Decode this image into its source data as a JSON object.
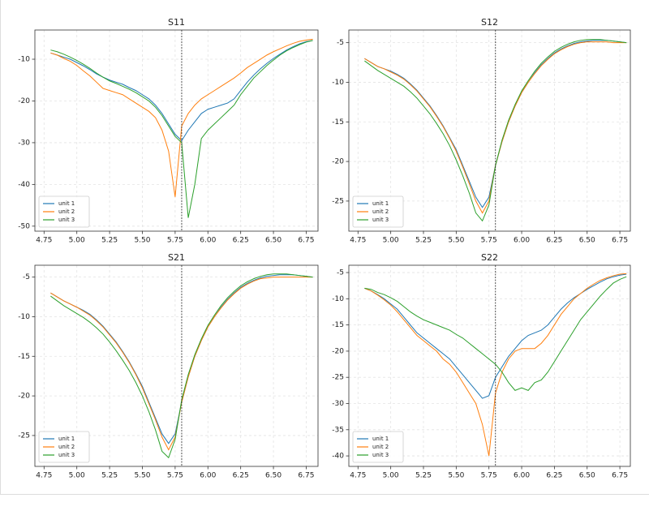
{
  "chart_data": [
    {
      "type": "line",
      "title": "S11",
      "grid": true,
      "legend": "lower left",
      "vline": 5.8,
      "xlim": [
        4.68,
        6.84
      ],
      "ylim": [
        -51.2,
        -3.0
      ],
      "xticks": [
        4.75,
        {
          "value": 5,
          "label": "5.00"
        },
        5.25,
        {
          "value": 5.5,
          "label": "5.50"
        },
        5.75,
        {
          "value": 6,
          "label": "6.00"
        },
        6.25,
        {
          "value": 6.5,
          "label": "6.50"
        },
        6.75
      ],
      "yticks": [
        -10,
        -20,
        -30,
        -40,
        -50
      ],
      "x": [
        4.8,
        4.85,
        4.9,
        4.95,
        5.0,
        5.05,
        5.1,
        5.15,
        5.2,
        5.25,
        5.3,
        5.35,
        5.4,
        5.45,
        5.5,
        5.55,
        5.6,
        5.65,
        5.7,
        5.75,
        5.8,
        5.85,
        5.9,
        5.95,
        6.0,
        6.05,
        6.1,
        6.15,
        6.2,
        6.25,
        6.3,
        6.35,
        6.4,
        6.45,
        6.5,
        6.55,
        6.6,
        6.65,
        6.7,
        6.75,
        6.8
      ],
      "series": [
        {
          "name": "unit 1",
          "color": "#1f77b4",
          "values": [
            -8.5,
            -9,
            -9.5,
            -10,
            -10.8,
            -11.6,
            -12.5,
            -13.5,
            -14.3,
            -15,
            -15.5,
            -16,
            -16.8,
            -17.5,
            -18.5,
            -19.5,
            -21,
            -23,
            -25.5,
            -28,
            -29.5,
            -27,
            -25,
            -23,
            -22,
            -21.5,
            -21,
            -20.5,
            -19.5,
            -17.5,
            -15.5,
            -13.8,
            -12.3,
            -11,
            -9.8,
            -8.8,
            -7.8,
            -7,
            -6.3,
            -5.8,
            -5.5
          ]
        },
        {
          "name": "unit 2",
          "color": "#ff7f0e",
          "values": [
            -8.5,
            -9,
            -9.8,
            -10.5,
            -11.5,
            -12.8,
            -14,
            -15.5,
            -17,
            -17.5,
            -18,
            -18.5,
            -19.5,
            -20.5,
            -21.5,
            -22.5,
            -24,
            -27,
            -32,
            -43,
            -26,
            -23,
            -21,
            -19.5,
            -18.5,
            -17.5,
            -16.5,
            -15.5,
            -14.5,
            -13.3,
            -12,
            -11,
            -10,
            -9,
            -8.2,
            -7.5,
            -6.8,
            -6.2,
            -5.7,
            -5.4,
            -5.2
          ]
        },
        {
          "name": "unit 3",
          "color": "#2ca02c",
          "values": [
            -7.8,
            -8.2,
            -8.8,
            -9.5,
            -10.3,
            -11.2,
            -12.2,
            -13.3,
            -14.3,
            -15.2,
            -15.8,
            -16.5,
            -17.2,
            -18,
            -19,
            -20,
            -21.5,
            -23.5,
            -26,
            -28.5,
            -30,
            -48,
            -40,
            -29,
            -27,
            -25.5,
            -24,
            -22.5,
            -21,
            -18.5,
            -16.5,
            -14.5,
            -13,
            -11.5,
            -10.2,
            -9,
            -8,
            -7.2,
            -6.5,
            -5.9,
            -5.5
          ]
        }
      ]
    },
    {
      "type": "line",
      "title": "S12",
      "grid": true,
      "legend": "lower left",
      "vline": 5.8,
      "xlim": [
        4.68,
        6.83
      ],
      "ylim": [
        -28.8,
        -3.4
      ],
      "xticks": [
        4.75,
        {
          "value": 5,
          "label": "5.00"
        },
        5.25,
        {
          "value": 5.5,
          "label": "5.50"
        },
        5.75,
        {
          "value": 6,
          "label": "6.00"
        },
        6.25,
        {
          "value": 6.5,
          "label": "6.50"
        },
        6.75
      ],
      "yticks": [
        -5,
        -10,
        -15,
        -20,
        -25
      ],
      "x": [
        4.8,
        4.85,
        4.9,
        4.95,
        5.0,
        5.05,
        5.1,
        5.15,
        5.2,
        5.25,
        5.3,
        5.35,
        5.4,
        5.45,
        5.5,
        5.55,
        5.6,
        5.65,
        5.7,
        5.75,
        5.8,
        5.85,
        5.9,
        5.95,
        6.0,
        6.05,
        6.1,
        6.15,
        6.2,
        6.25,
        6.3,
        6.35,
        6.4,
        6.45,
        6.5,
        6.55,
        6.6,
        6.65,
        6.7,
        6.75,
        6.8
      ],
      "series": [
        {
          "name": "unit 1",
          "color": "#1f77b4",
          "values": [
            -7,
            -7.5,
            -8,
            -8.3,
            -8.6,
            -9,
            -9.5,
            -10.2,
            -11,
            -12,
            -13,
            -14.2,
            -15.5,
            -17,
            -18.5,
            -20.5,
            -22.5,
            -24.5,
            -25.8,
            -24.5,
            -20.5,
            -17.5,
            -15,
            -13,
            -11.3,
            -10,
            -8.8,
            -7.8,
            -7,
            -6.3,
            -5.8,
            -5.4,
            -5.1,
            -4.9,
            -4.8,
            -4.7,
            -4.7,
            -4.7,
            -4.8,
            -4.9,
            -5
          ]
        },
        {
          "name": "unit 2",
          "color": "#ff7f0e",
          "values": [
            -7,
            -7.5,
            -8,
            -8.3,
            -8.7,
            -9.1,
            -9.6,
            -10.3,
            -11.1,
            -12.1,
            -13.1,
            -14.3,
            -15.6,
            -17.1,
            -18.7,
            -20.7,
            -22.8,
            -25,
            -26.5,
            -25,
            -20.5,
            -17.5,
            -15,
            -13,
            -11.3,
            -10,
            -8.9,
            -7.9,
            -7.1,
            -6.4,
            -5.9,
            -5.5,
            -5.2,
            -5,
            -4.9,
            -4.9,
            -4.9,
            -4.9,
            -5,
            -5,
            -5
          ]
        },
        {
          "name": "unit 3",
          "color": "#2ca02c",
          "values": [
            -7.3,
            -7.9,
            -8.5,
            -9,
            -9.5,
            -10,
            -10.5,
            -11.2,
            -12,
            -13,
            -14,
            -15.2,
            -16.5,
            -18,
            -19.8,
            -21.8,
            -24,
            -26.5,
            -27.5,
            -25.5,
            -20.5,
            -17.3,
            -14.8,
            -12.8,
            -11.1,
            -9.8,
            -8.6,
            -7.6,
            -6.8,
            -6.1,
            -5.6,
            -5.2,
            -4.9,
            -4.7,
            -4.6,
            -4.6,
            -4.6,
            -4.7,
            -4.8,
            -4.9,
            -5
          ]
        }
      ]
    },
    {
      "type": "line",
      "title": "S21",
      "grid": true,
      "legend": "lower left",
      "vline": 5.8,
      "xlim": [
        4.68,
        6.84
      ],
      "ylim": [
        -28.9,
        -3.5
      ],
      "xticks": [
        4.75,
        {
          "value": 5,
          "label": "5.00"
        },
        5.25,
        {
          "value": 5.5,
          "label": "5.50"
        },
        5.75,
        {
          "value": 6,
          "label": "6.00"
        },
        6.25,
        {
          "value": 6.5,
          "label": "6.50"
        },
        6.75
      ],
      "yticks": [
        -5,
        -10,
        -15,
        -20,
        -25
      ],
      "x": [
        4.8,
        4.85,
        4.9,
        4.95,
        5.0,
        5.05,
        5.1,
        5.15,
        5.2,
        5.25,
        5.3,
        5.35,
        5.4,
        5.45,
        5.5,
        5.55,
        5.6,
        5.65,
        5.7,
        5.75,
        5.8,
        5.85,
        5.9,
        5.95,
        6.0,
        6.05,
        6.1,
        6.15,
        6.2,
        6.25,
        6.3,
        6.35,
        6.4,
        6.45,
        6.5,
        6.55,
        6.6,
        6.65,
        6.7,
        6.75,
        6.8
      ],
      "series": [
        {
          "name": "unit 1",
          "color": "#1f77b4",
          "values": [
            -7,
            -7.5,
            -8,
            -8.4,
            -8.8,
            -9.2,
            -9.7,
            -10.4,
            -11.2,
            -12.2,
            -13.2,
            -14.4,
            -15.7,
            -17.2,
            -18.8,
            -20.8,
            -22.8,
            -24.8,
            -26,
            -24.8,
            -20.8,
            -17.6,
            -15,
            -13,
            -11.3,
            -10,
            -8.8,
            -7.8,
            -7,
            -6.3,
            -5.8,
            -5.4,
            -5.1,
            -4.9,
            -4.8,
            -4.7,
            -4.7,
            -4.7,
            -4.8,
            -4.9,
            -5
          ]
        },
        {
          "name": "unit 2",
          "color": "#ff7f0e",
          "values": [
            -7,
            -7.5,
            -8,
            -8.4,
            -8.8,
            -9.3,
            -9.8,
            -10.5,
            -11.3,
            -12.3,
            -13.3,
            -14.5,
            -15.8,
            -17.3,
            -19,
            -21,
            -23,
            -25.2,
            -26.8,
            -25.2,
            -20.8,
            -17.6,
            -15,
            -13,
            -11.3,
            -10,
            -8.9,
            -7.9,
            -7.1,
            -6.4,
            -5.9,
            -5.5,
            -5.2,
            -5.1,
            -5,
            -5,
            -5,
            -5,
            -5,
            -5,
            -5
          ]
        },
        {
          "name": "unit 3",
          "color": "#2ca02c",
          "values": [
            -7.4,
            -8,
            -8.6,
            -9.1,
            -9.6,
            -10.1,
            -10.7,
            -11.4,
            -12.2,
            -13.2,
            -14.3,
            -15.5,
            -16.8,
            -18.3,
            -20,
            -22,
            -24.3,
            -27,
            -27.8,
            -25.5,
            -20.5,
            -17.3,
            -14.8,
            -12.8,
            -11.1,
            -9.8,
            -8.6,
            -7.6,
            -6.8,
            -6.1,
            -5.6,
            -5.2,
            -4.9,
            -4.7,
            -4.6,
            -4.6,
            -4.6,
            -4.7,
            -4.8,
            -4.9,
            -5
          ]
        }
      ]
    },
    {
      "type": "line",
      "title": "S22",
      "grid": true,
      "legend": "lower left",
      "vline": 5.8,
      "xlim": [
        4.68,
        6.83
      ],
      "ylim": [
        -42.0,
        -3.6
      ],
      "xticks": [
        4.75,
        {
          "value": 5,
          "label": "5.00"
        },
        5.25,
        {
          "value": 5.5,
          "label": "5.50"
        },
        5.75,
        {
          "value": 6,
          "label": "6.00"
        },
        6.25,
        {
          "value": 6.5,
          "label": "6.50"
        },
        6.75
      ],
      "yticks": [
        -5,
        -10,
        -15,
        -20,
        -25,
        -30,
        -35,
        -40
      ],
      "x": [
        4.8,
        4.85,
        4.9,
        4.95,
        5.0,
        5.05,
        5.1,
        5.15,
        5.2,
        5.25,
        5.3,
        5.35,
        5.4,
        5.45,
        5.5,
        5.55,
        5.6,
        5.65,
        5.7,
        5.75,
        5.8,
        5.85,
        5.9,
        5.95,
        6.0,
        6.05,
        6.1,
        6.15,
        6.2,
        6.25,
        6.3,
        6.35,
        6.4,
        6.45,
        6.5,
        6.55,
        6.6,
        6.65,
        6.7,
        6.75,
        6.8
      ],
      "series": [
        {
          "name": "unit 1",
          "color": "#1f77b4",
          "values": [
            -8,
            -8.5,
            -9.2,
            -10,
            -11,
            -12,
            -13.5,
            -15,
            -16.5,
            -17.5,
            -18.5,
            -19.5,
            -20.5,
            -21.5,
            -23,
            -24.5,
            -26,
            -27.5,
            -29,
            -28.5,
            -25,
            -23,
            -21,
            -19.5,
            -18,
            -17,
            -16.5,
            -16,
            -15,
            -13.5,
            -12,
            -10.8,
            -9.8,
            -9,
            -8.2,
            -7.5,
            -6.8,
            -6.2,
            -5.8,
            -5.5,
            -5.3
          ]
        },
        {
          "name": "unit 2",
          "color": "#ff7f0e",
          "values": [
            -8,
            -8.5,
            -9.3,
            -10.2,
            -11.2,
            -12.5,
            -14,
            -15.5,
            -17,
            -18,
            -19,
            -20,
            -21.5,
            -22.5,
            -24,
            -26,
            -28,
            -30,
            -34,
            -40,
            -28,
            -24,
            -21.5,
            -20,
            -19.5,
            -19.5,
            -19.5,
            -18.5,
            -17,
            -15,
            -13,
            -11.5,
            -10,
            -9,
            -8,
            -7.2,
            -6.5,
            -6,
            -5.6,
            -5.3,
            -5.2
          ]
        },
        {
          "name": "unit 3",
          "color": "#2ca02c",
          "values": [
            -8,
            -8.2,
            -8.8,
            -9.2,
            -9.8,
            -10.5,
            -11.5,
            -12.5,
            -13.3,
            -14,
            -14.5,
            -15,
            -15.5,
            -16,
            -16.8,
            -17.5,
            -18.5,
            -19.5,
            -20.5,
            -21.5,
            -22.5,
            -24,
            -26,
            -27.5,
            -27,
            -27.5,
            -26,
            -25.5,
            -24,
            -22,
            -20,
            -18,
            -16,
            -14,
            -12.5,
            -11,
            -9.5,
            -8.2,
            -7,
            -6.3,
            -5.8
          ]
        }
      ]
    }
  ]
}
